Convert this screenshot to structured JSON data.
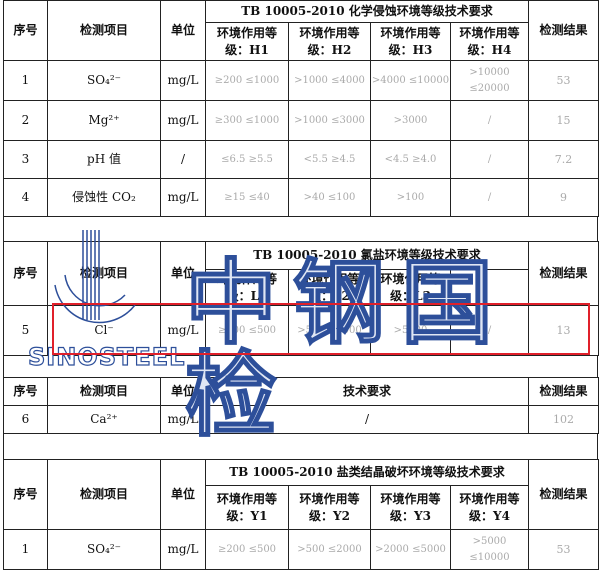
{
  "cols": {
    "no": "序号",
    "item": "检测项目",
    "unit": "单位",
    "result": "检测结果",
    "tech": "技术要求"
  },
  "t1": {
    "title": "TB 10005-2010 化学侵蚀环境等级技术要求",
    "levels": [
      "环境作用等级：H1",
      "环境作用等级：H2",
      "环境作用等级：H3",
      "环境作用等级：H4"
    ],
    "rows": [
      {
        "no": "1",
        "item": "SO₄²⁻",
        "unit": "mg/L",
        "v": [
          "≥200 ≤1000",
          ">1000 ≤4000",
          ">4000 ≤10000",
          ">10000 ≤20000"
        ],
        "result": "53"
      },
      {
        "no": "2",
        "item": "Mg²⁺",
        "unit": "mg/L",
        "v": [
          "≥300 ≤1000",
          ">1000 ≤3000",
          ">3000",
          "/"
        ],
        "result": "15"
      },
      {
        "no": "3",
        "item": "pH 值",
        "unit": "/",
        "v": [
          "≤6.5 ≥5.5",
          "<5.5 ≥4.5",
          "<4.5 ≥4.0",
          "/"
        ],
        "result": "7.2"
      },
      {
        "no": "4",
        "item": "侵蚀性 CO₂",
        "unit": "mg/L",
        "v": [
          "≥15 ≤40",
          ">40 ≤100",
          ">100",
          "/"
        ],
        "result": "9"
      }
    ]
  },
  "t2": {
    "title": "TB 10005-2010 氯盐环境等级技术要求",
    "levels": [
      "环境作用等级：L1",
      "环境作用等级：L2",
      "环境作用等级：L3",
      ""
    ],
    "rows": [
      {
        "no": "5",
        "item": "Cl⁻",
        "unit": "mg/L",
        "v": [
          "≥100 ≤500",
          ">500 ≤5000",
          ">5000",
          "/"
        ],
        "result": "13"
      }
    ]
  },
  "t3": {
    "rows": [
      {
        "no": "6",
        "item": "Ca²⁺",
        "unit": "mg/L",
        "tech": "/",
        "result": "102"
      }
    ]
  },
  "t4": {
    "title": "TB 10005-2010 盐类结晶破坏环境等级技术要求",
    "levels": [
      "环境作用等级：Y1",
      "环境作用等级：Y2",
      "环境作用等级：Y3",
      "环境作用等级：Y4"
    ],
    "rows": [
      {
        "no": "1",
        "item": "SO₄²⁻",
        "unit": "mg/L",
        "v": [
          "≥200 ≤500",
          ">500 ≤2000",
          ">2000 ≤5000",
          ">5000 ≤10000"
        ],
        "result": "53"
      }
    ]
  },
  "watermark": {
    "brand": "SINOSTEEL",
    "text": "中钢国检"
  }
}
